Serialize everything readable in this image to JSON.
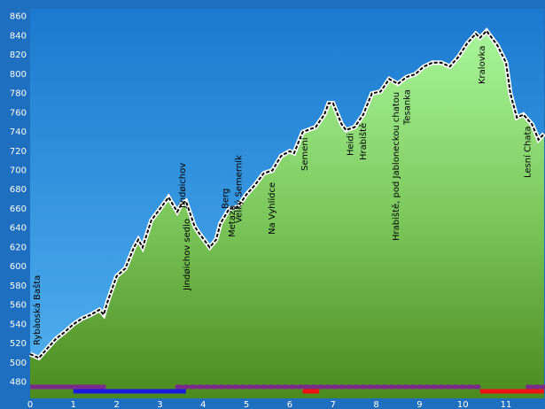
{
  "chart_data": {
    "type": "elevation-profile",
    "x": [
      0,
      0.2,
      0.4,
      0.6,
      0.8,
      1.0,
      1.2,
      1.4,
      1.6,
      1.7,
      1.8,
      2.0,
      2.2,
      2.4,
      2.5,
      2.6,
      2.8,
      3.0,
      3.2,
      3.4,
      3.5,
      3.6,
      3.8,
      3.9,
      4.15,
      4.3,
      4.4,
      4.6,
      4.8,
      5.0,
      5.2,
      5.4,
      5.6,
      5.8,
      6.0,
      6.1,
      6.3,
      6.6,
      6.8,
      6.9,
      7.0,
      7.2,
      7.3,
      7.5,
      7.7,
      7.9,
      8.1,
      8.3,
      8.5,
      8.7,
      8.9,
      9.1,
      9.3,
      9.5,
      9.7,
      9.9,
      10.1,
      10.3,
      10.4,
      10.55,
      10.8,
      11.0,
      11.1,
      11.25,
      11.4,
      11.6,
      11.75,
      11.88
    ],
    "values": [
      509,
      505,
      515,
      525,
      532,
      540,
      546,
      550,
      555,
      550,
      565,
      590,
      598,
      620,
      628,
      620,
      648,
      660,
      672,
      657,
      665,
      668,
      642,
      635,
      620,
      628,
      645,
      660,
      662,
      675,
      685,
      697,
      700,
      715,
      720,
      718,
      740,
      745,
      758,
      770,
      770,
      748,
      742,
      745,
      758,
      780,
      782,
      795,
      790,
      797,
      800,
      808,
      812,
      812,
      808,
      818,
      832,
      842,
      838,
      845,
      830,
      812,
      780,
      755,
      758,
      748,
      732,
      738
    ],
    "xlim": [
      0,
      11.88
    ],
    "ylim": [
      463,
      868
    ],
    "xticks": [
      0,
      1,
      2,
      3,
      4,
      5,
      6,
      7,
      8,
      9,
      10,
      11
    ],
    "yticks": [
      480,
      500,
      520,
      540,
      560,
      580,
      600,
      620,
      640,
      660,
      680,
      700,
      720,
      740,
      760,
      780,
      800,
      820,
      840,
      860
    ],
    "grid": true,
    "waypoints": [
      {
        "label": "Rybàoská Bašta",
        "x": 0.14
      },
      {
        "label": "Jindøichov sedlo",
        "x": 3.6
      },
      {
        "label": "Jindøichov",
        "x": 3.5
      },
      {
        "label": "Berg",
        "x": 4.5
      },
      {
        "label": "Metaza",
        "x": 4.65
      },
      {
        "label": "Velký Semerník",
        "x": 4.8
      },
      {
        "label": "Na Vyhlídce",
        "x": 5.57
      },
      {
        "label": "Semeni",
        "x": 6.33
      },
      {
        "label": "Heidi",
        "x": 7.38
      },
      {
        "label": "Hrabiště",
        "x": 7.68
      },
      {
        "label": "Hrabiště, pod Jabloneckou chatou",
        "x": 8.44
      },
      {
        "label": "Tesanka",
        "x": 8.69
      },
      {
        "label": "Kralovka",
        "x": 10.43
      },
      {
        "label": "Lesní Chata",
        "x": 11.48
      }
    ],
    "route_bars": [
      {
        "start": 0,
        "end": 1.75,
        "color": "#7a2a8a",
        "dashed": false,
        "row": 0
      },
      {
        "start": 3.4,
        "end": 10.4,
        "color": "#7a2a8a",
        "dashed": true,
        "row": 0
      },
      {
        "start": 11.5,
        "end": 11.88,
        "color": "#7a2a8a",
        "dashed": true,
        "row": 0
      },
      {
        "start": 1.0,
        "end": 3.6,
        "color": "#1a1ae0",
        "dashed": false,
        "row": 1
      },
      {
        "start": 6.3,
        "end": 6.68,
        "color": "#ee1111",
        "dashed": false,
        "row": 1
      },
      {
        "start": 10.4,
        "end": 11.88,
        "color": "#ee1111",
        "dashed": false,
        "row": 1
      }
    ]
  }
}
